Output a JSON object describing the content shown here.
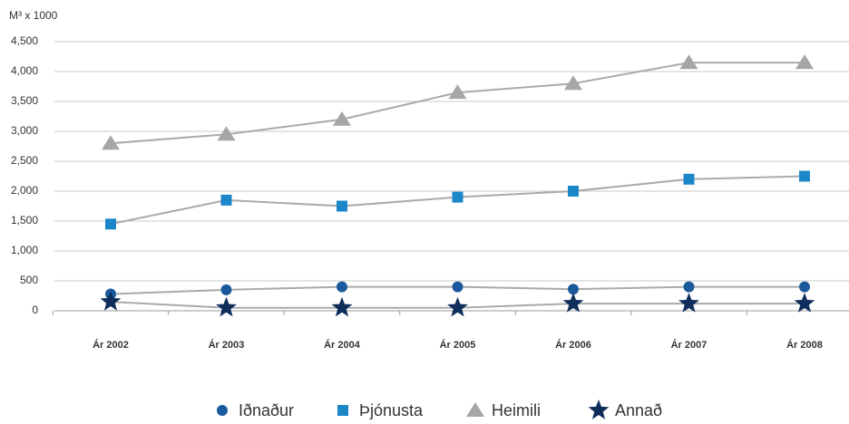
{
  "chart_data": {
    "type": "line",
    "y_axis_label": "M³ x 1000",
    "categories": [
      "Ár 2002",
      "Ár 2003",
      "Ár 2004",
      "Ár 2005",
      "Ár 2006",
      "Ár 2007",
      "Ár 2008"
    ],
    "series": [
      {
        "name": "Iðnaður",
        "color": "#1a5a9c",
        "marker": "circle",
        "values": [
          280,
          350,
          400,
          400,
          360,
          400,
          400
        ]
      },
      {
        "name": "Þjónusta",
        "color": "#1b87c9",
        "marker": "square",
        "values": [
          1450,
          1850,
          1750,
          1900,
          2000,
          2200,
          2250
        ]
      },
      {
        "name": "Heimili",
        "color": "#a6a6a6",
        "marker": "triangle",
        "values": [
          2800,
          2950,
          3200,
          3650,
          3800,
          4150,
          4150
        ]
      },
      {
        "name": "Annað",
        "color": "#0f2e5c",
        "marker": "star",
        "values": [
          150,
          50,
          50,
          50,
          120,
          120,
          120
        ]
      }
    ],
    "line_color": "#aaaaaa",
    "ylim": [
      0,
      4500
    ],
    "yticks": [
      0,
      500,
      {
        "value": 1000,
        "label": "1,000"
      },
      {
        "value": 1500,
        "label": "1,500"
      },
      {
        "value": 2000,
        "label": "2,000"
      },
      {
        "value": 2500,
        "label": "2,500"
      },
      {
        "value": 3000,
        "label": "3,000"
      },
      {
        "value": 3500,
        "label": "3,500"
      },
      {
        "value": 4000,
        "label": "4,000"
      },
      {
        "value": 4500,
        "label": "4,500"
      }
    ],
    "grid": true,
    "legend": "bottom"
  }
}
